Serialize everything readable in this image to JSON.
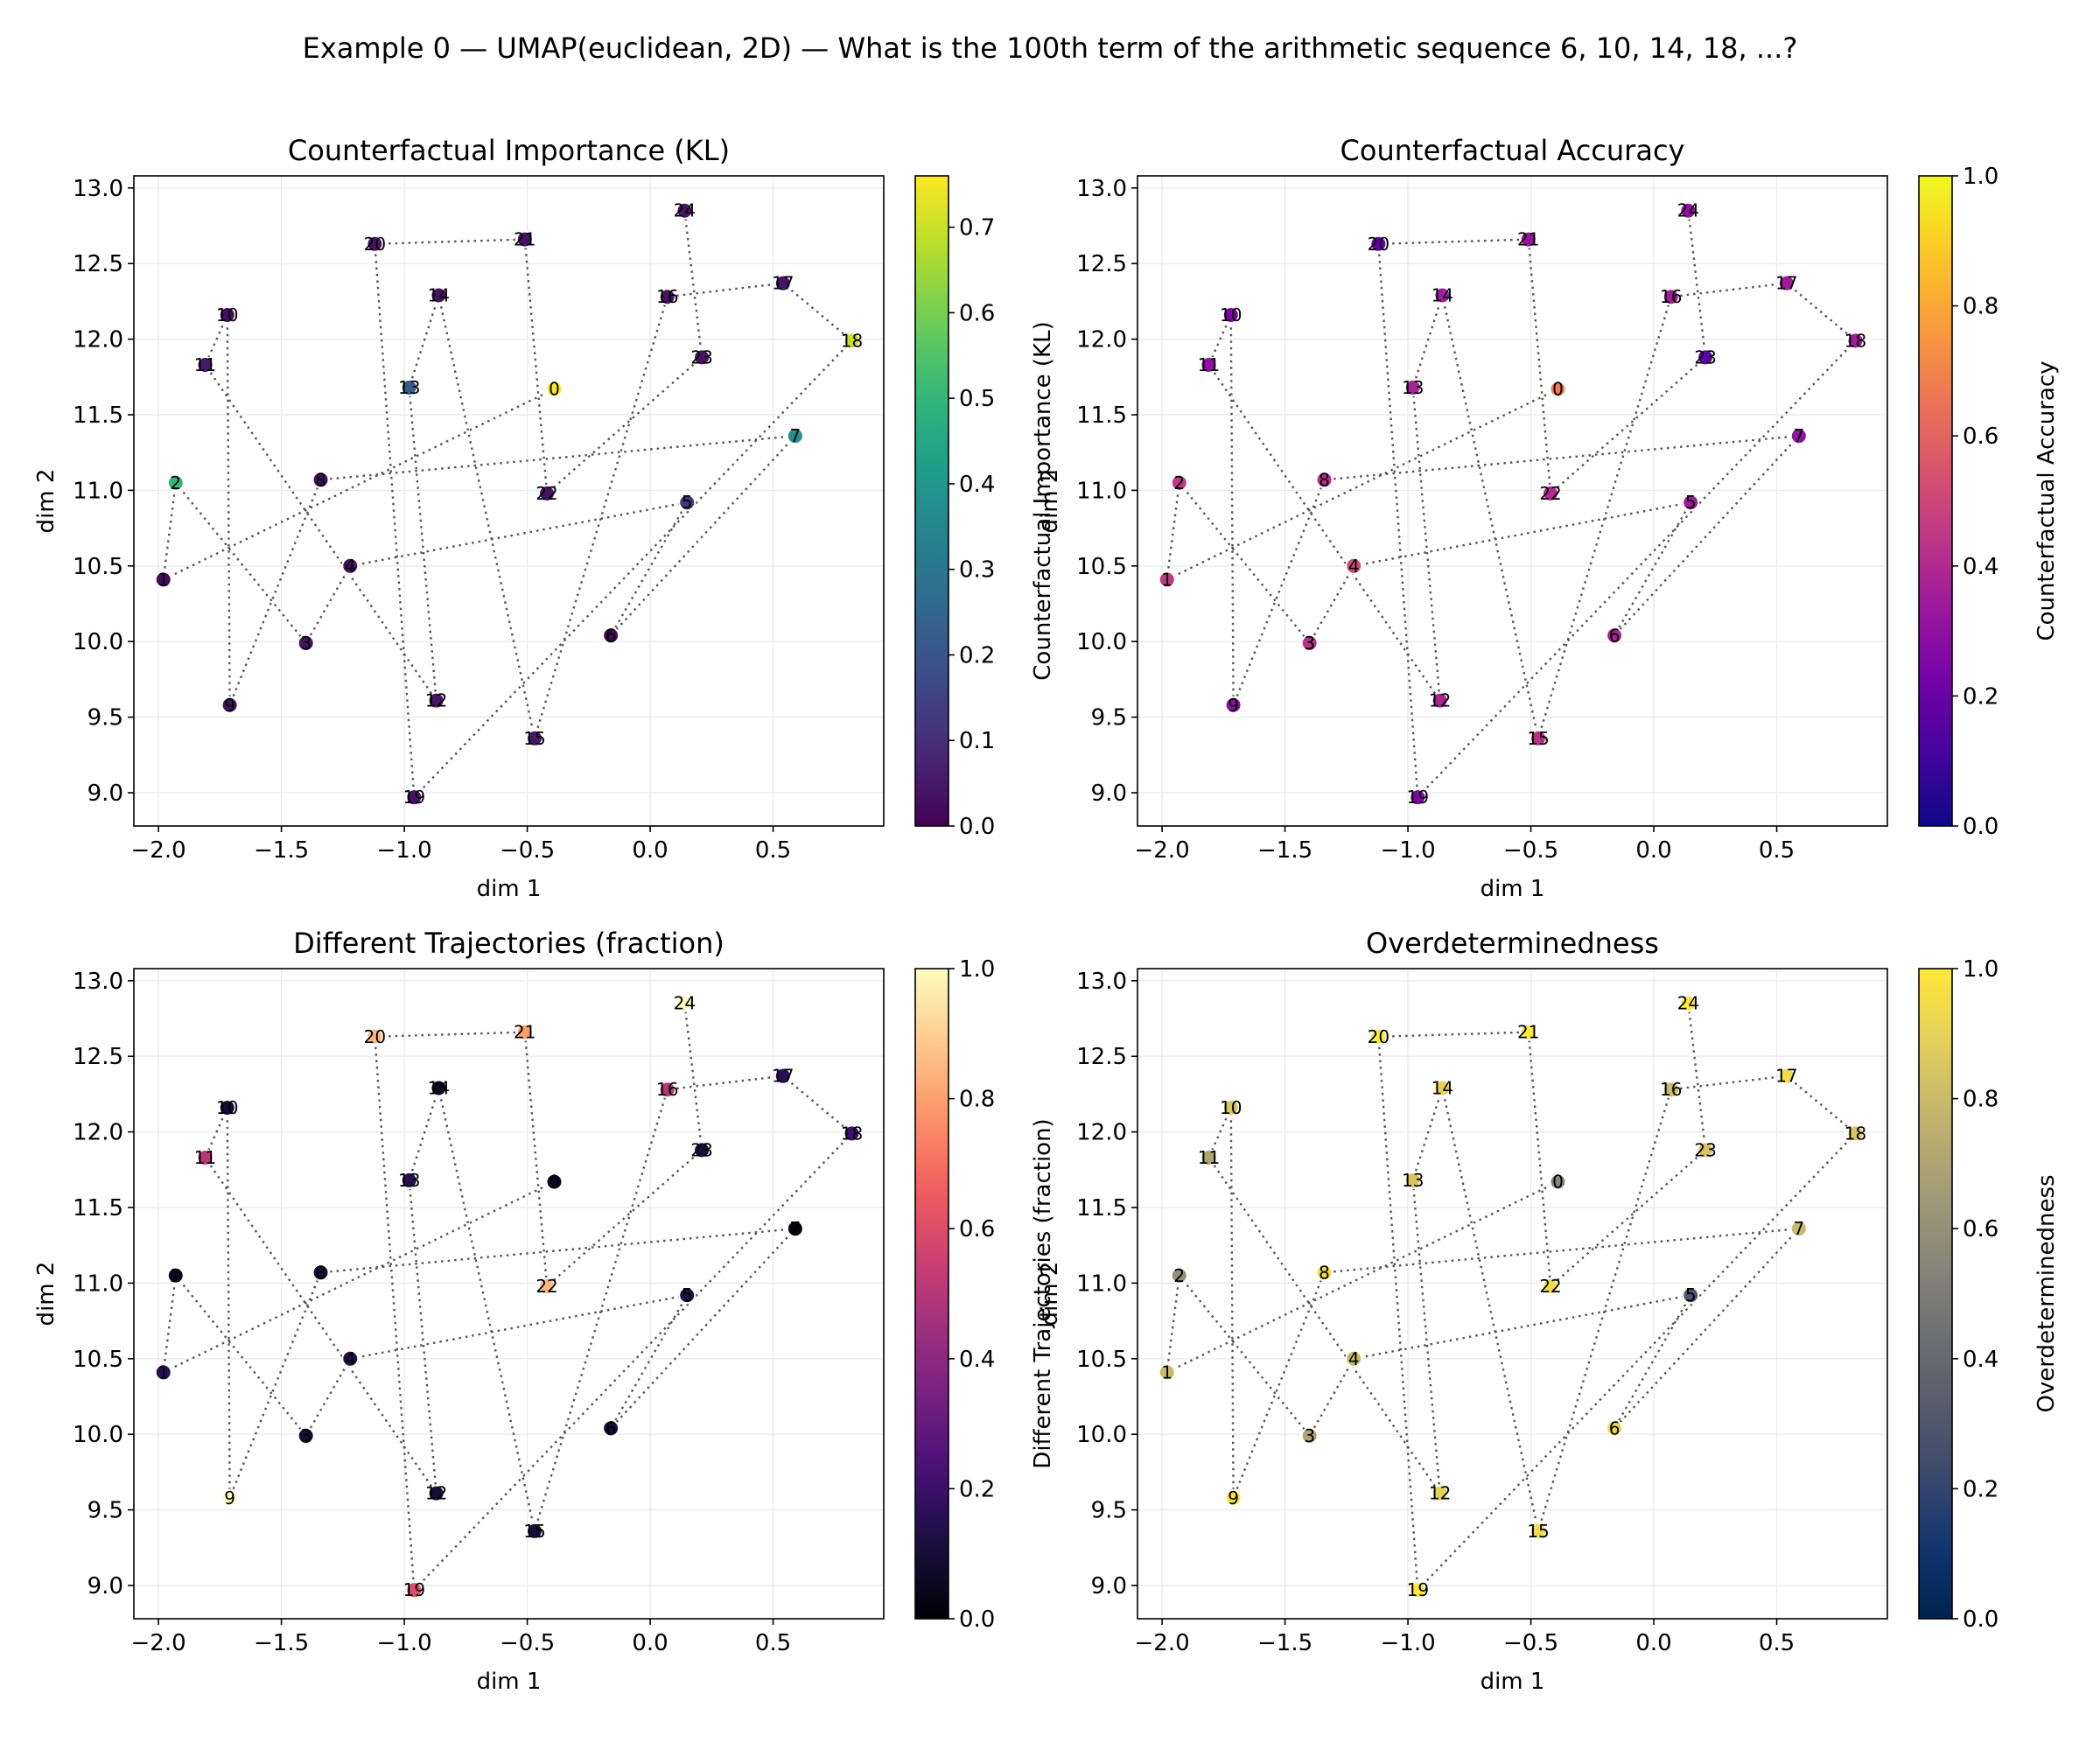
{
  "figure_title": "Example 0 — UMAP(euclidean, 2D) — What is the 100th term of the arithmetic sequence 6, 10, 14, 18, ...?",
  "chart_data": [
    {
      "type": "scatter",
      "title": "Counterfactual Importance (KL)",
      "xlabel": "dim 1",
      "ylabel": "dim 2",
      "colorbar_label": "Counterfactual Importance (KL)",
      "colormap": "viridis",
      "color_range": [
        0,
        0.76
      ],
      "colorbar_ticks": [
        "0.0",
        "0.1",
        "0.2",
        "0.3",
        "0.4",
        "0.5",
        "0.6",
        "0.7"
      ],
      "colorbar_tick_values": [
        0,
        0.1,
        0.2,
        0.3,
        0.4,
        0.5,
        0.6,
        0.7
      ],
      "values": [
        0.76,
        0.02,
        0.5,
        0.04,
        0.04,
        0.12,
        0.02,
        0.38,
        0.03,
        0.04,
        0.03,
        0.05,
        0.04,
        0.22,
        0.04,
        0.05,
        0.04,
        0.04,
        0.7,
        0.04,
        0.04,
        0.04,
        0.04,
        0.04,
        0.04
      ]
    },
    {
      "type": "scatter",
      "title": "Counterfactual Accuracy",
      "xlabel": "dim 1",
      "ylabel": "dim 2",
      "colorbar_label": "Counterfactual Accuracy",
      "colormap": "plasma",
      "color_range": [
        0,
        1
      ],
      "colorbar_ticks": [
        "0.0",
        "0.2",
        "0.4",
        "0.6",
        "0.8",
        "1.0"
      ],
      "colorbar_tick_values": [
        0,
        0.2,
        0.4,
        0.6,
        0.8,
        1.0
      ],
      "values": [
        0.68,
        0.45,
        0.45,
        0.42,
        0.52,
        0.35,
        0.38,
        0.3,
        0.42,
        0.3,
        0.25,
        0.3,
        0.38,
        0.38,
        0.35,
        0.42,
        0.35,
        0.35,
        0.35,
        0.25,
        0.2,
        0.32,
        0.4,
        0.18,
        0.3
      ]
    },
    {
      "type": "scatter",
      "title": "Different Trajectories (fraction)",
      "xlabel": "dim 1",
      "ylabel": "dim 2",
      "colorbar_label": "Different Trajectories (fraction)",
      "colormap": "magma",
      "color_range": [
        0,
        1
      ],
      "colorbar_ticks": [
        "0.0",
        "0.2",
        "0.4",
        "0.6",
        "0.8",
        "1.0"
      ],
      "colorbar_tick_values": [
        0,
        0.2,
        0.4,
        0.6,
        0.8,
        1.0
      ],
      "values": [
        0.06,
        0.15,
        0.05,
        0.1,
        0.15,
        0.12,
        0.1,
        0.02,
        0.1,
        1.0,
        0.1,
        0.5,
        0.1,
        0.15,
        0.05,
        0.1,
        0.5,
        0.15,
        0.2,
        0.6,
        0.85,
        0.8,
        0.85,
        0.1,
        1.0
      ]
    },
    {
      "type": "scatter",
      "title": "Overdeterminedness",
      "xlabel": "dim 1",
      "ylabel": "dim 2",
      "colorbar_label": "Overdeterminedness",
      "colormap": "cividis",
      "color_range": [
        0,
        1
      ],
      "colorbar_ticks": [
        "0.0",
        "0.2",
        "0.4",
        "0.6",
        "0.8",
        "1.0"
      ],
      "colorbar_tick_values": [
        0,
        0.2,
        0.4,
        0.6,
        0.8,
        1.0
      ],
      "values": [
        0.55,
        0.8,
        0.6,
        0.7,
        0.8,
        0.3,
        0.92,
        0.8,
        0.95,
        0.98,
        0.85,
        0.7,
        0.9,
        0.85,
        0.9,
        0.95,
        0.8,
        0.95,
        0.85,
        1.0,
        1.0,
        1.0,
        0.95,
        0.85,
        1.0
      ]
    }
  ],
  "points": {
    "labels": [
      "0",
      "1",
      "2",
      "3",
      "4",
      "5",
      "6",
      "7",
      "8",
      "9",
      "10",
      "11",
      "12",
      "13",
      "14",
      "15",
      "16",
      "17",
      "18",
      "19",
      "20",
      "21",
      "22",
      "23",
      "24"
    ],
    "x": [
      -0.39,
      -1.98,
      -1.93,
      -1.4,
      -1.22,
      0.15,
      -0.16,
      0.59,
      -1.34,
      -1.71,
      -1.72,
      -1.81,
      -0.87,
      -0.98,
      -0.86,
      -0.47,
      0.07,
      0.54,
      0.82,
      -0.96,
      -1.12,
      -0.51,
      -0.42,
      0.21,
      0.14
    ],
    "y": [
      11.67,
      10.41,
      11.05,
      9.99,
      10.5,
      10.92,
      10.04,
      11.36,
      11.07,
      9.58,
      12.16,
      11.83,
      9.61,
      11.68,
      12.29,
      9.36,
      12.28,
      12.37,
      11.99,
      8.97,
      12.63,
      12.66,
      10.98,
      11.88,
      12.85
    ],
    "trajectory_order": [
      0,
      1,
      2,
      3,
      4,
      5,
      6,
      7,
      8,
      9,
      10,
      11,
      12,
      13,
      14,
      15,
      16,
      17,
      18,
      19,
      20,
      21,
      22,
      23,
      24
    ]
  },
  "axes": {
    "xlim": [
      -2.1,
      0.95
    ],
    "ylim": [
      8.78,
      13.08
    ],
    "xticks": [
      -2.0,
      -1.5,
      -1.0,
      -0.5,
      0.0,
      0.5
    ],
    "xtick_labels": [
      "−2.0",
      "−1.5",
      "−1.0",
      "−0.5",
      "0.0",
      "0.5"
    ],
    "yticks": [
      9.0,
      9.5,
      10.0,
      10.5,
      11.0,
      11.5,
      12.0,
      12.5,
      13.0
    ],
    "ytick_labels": [
      "9.0",
      "9.5",
      "10.0",
      "10.5",
      "11.0",
      "11.5",
      "12.0",
      "12.5",
      "13.0"
    ],
    "grid": true
  }
}
